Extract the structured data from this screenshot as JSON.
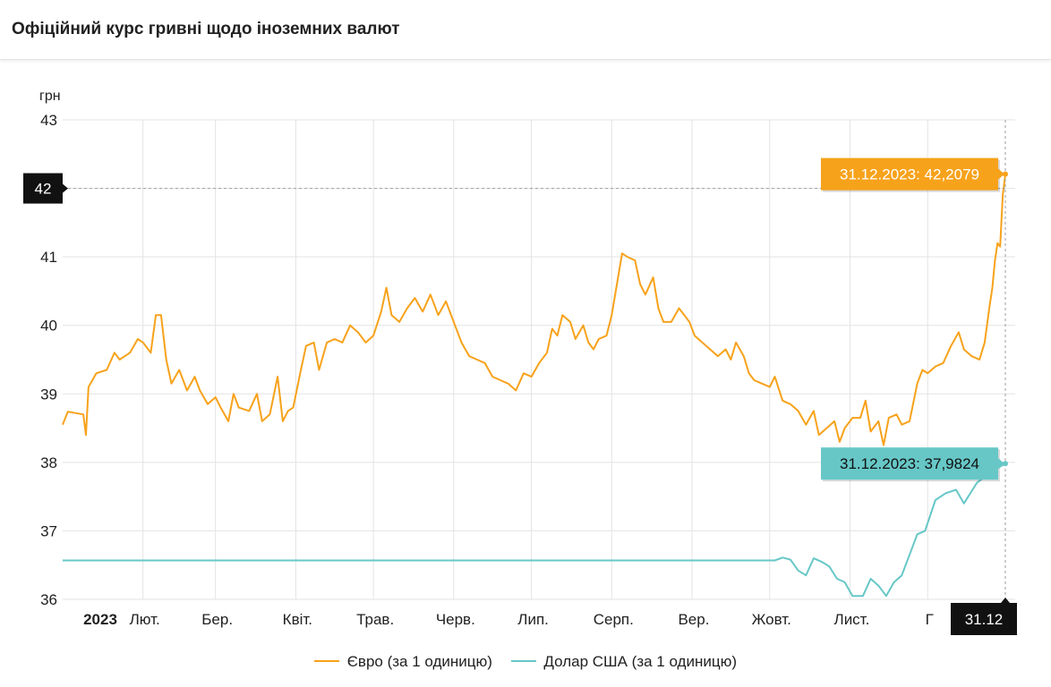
{
  "header": {
    "title": "Офіційний курс гривні щодо іноземних валют"
  },
  "colors": {
    "euro": "#f7a21b",
    "usd": "#67c7c7",
    "grid": "#e3e3e3",
    "crosshair_label": "#111111",
    "euro_label": "#f7a21b",
    "usd_label": "#67c7c7"
  },
  "chart_data": {
    "type": "line",
    "ylabel": "грн",
    "ylim": [
      36,
      43
    ],
    "yticks": [
      "43",
      "41",
      "40",
      "39",
      "38",
      "37",
      "36"
    ],
    "x_range": [
      "2023-01-01",
      "2023-12-31"
    ],
    "xticks": [
      "2023",
      "Лют.",
      "Бер.",
      "Квіт.",
      "Трав.",
      "Черв.",
      "Лип.",
      "Серп.",
      "Вер.",
      "Жовт.",
      "Лист.",
      "Г"
    ],
    "legend_position": "bottom",
    "grid": true,
    "series": [
      {
        "name": "Євро (за 1 одиницю)",
        "color": "#f7a21b",
        "points": [
          [
            "2023-01-01",
            38.55
          ],
          [
            "2023-01-03",
            38.74
          ],
          [
            "2023-01-09",
            38.7
          ],
          [
            "2023-01-10",
            38.4
          ],
          [
            "2023-01-11",
            39.1
          ],
          [
            "2023-01-14",
            39.3
          ],
          [
            "2023-01-18",
            39.35
          ],
          [
            "2023-01-21",
            39.6
          ],
          [
            "2023-01-23",
            39.5
          ],
          [
            "2023-01-27",
            39.6
          ],
          [
            "2023-01-30",
            39.8
          ],
          [
            "2023-02-01",
            39.75
          ],
          [
            "2023-02-04",
            39.6
          ],
          [
            "2023-02-06",
            40.15
          ],
          [
            "2023-02-08",
            40.15
          ],
          [
            "2023-02-10",
            39.5
          ],
          [
            "2023-02-12",
            39.15
          ],
          [
            "2023-02-15",
            39.35
          ],
          [
            "2023-02-18",
            39.05
          ],
          [
            "2023-02-21",
            39.25
          ],
          [
            "2023-02-23",
            39.05
          ],
          [
            "2023-02-26",
            38.85
          ],
          [
            "2023-03-01",
            38.95
          ],
          [
            "2023-03-03",
            38.8
          ],
          [
            "2023-03-06",
            38.6
          ],
          [
            "2023-03-08",
            39.0
          ],
          [
            "2023-03-10",
            38.8
          ],
          [
            "2023-03-14",
            38.75
          ],
          [
            "2023-03-17",
            39.0
          ],
          [
            "2023-03-19",
            38.6
          ],
          [
            "2023-03-22",
            38.7
          ],
          [
            "2023-03-25",
            39.25
          ],
          [
            "2023-03-27",
            38.6
          ],
          [
            "2023-03-29",
            38.75
          ],
          [
            "2023-03-31",
            38.8
          ],
          [
            "2023-04-03",
            39.35
          ],
          [
            "2023-04-05",
            39.7
          ],
          [
            "2023-04-08",
            39.75
          ],
          [
            "2023-04-10",
            39.35
          ],
          [
            "2023-04-13",
            39.75
          ],
          [
            "2023-04-16",
            39.8
          ],
          [
            "2023-04-19",
            39.75
          ],
          [
            "2023-04-22",
            40.0
          ],
          [
            "2023-04-25",
            39.9
          ],
          [
            "2023-04-28",
            39.75
          ],
          [
            "2023-05-01",
            39.85
          ],
          [
            "2023-05-04",
            40.2
          ],
          [
            "2023-05-06",
            40.55
          ],
          [
            "2023-05-08",
            40.15
          ],
          [
            "2023-05-11",
            40.05
          ],
          [
            "2023-05-14",
            40.25
          ],
          [
            "2023-05-17",
            40.4
          ],
          [
            "2023-05-20",
            40.2
          ],
          [
            "2023-05-23",
            40.45
          ],
          [
            "2023-05-26",
            40.15
          ],
          [
            "2023-05-29",
            40.35
          ],
          [
            "2023-06-01",
            40.05
          ],
          [
            "2023-06-04",
            39.75
          ],
          [
            "2023-06-07",
            39.55
          ],
          [
            "2023-06-10",
            39.5
          ],
          [
            "2023-06-13",
            39.45
          ],
          [
            "2023-06-16",
            39.25
          ],
          [
            "2023-06-19",
            39.2
          ],
          [
            "2023-06-22",
            39.15
          ],
          [
            "2023-06-25",
            39.05
          ],
          [
            "2023-06-28",
            39.3
          ],
          [
            "2023-07-01",
            39.25
          ],
          [
            "2023-07-04",
            39.45
          ],
          [
            "2023-07-07",
            39.6
          ],
          [
            "2023-07-09",
            39.95
          ],
          [
            "2023-07-11",
            39.85
          ],
          [
            "2023-07-13",
            40.15
          ],
          [
            "2023-07-16",
            40.05
          ],
          [
            "2023-07-18",
            39.8
          ],
          [
            "2023-07-21",
            40.0
          ],
          [
            "2023-07-23",
            39.75
          ],
          [
            "2023-07-25",
            39.65
          ],
          [
            "2023-07-27",
            39.8
          ],
          [
            "2023-07-30",
            39.85
          ],
          [
            "2023-08-01",
            40.15
          ],
          [
            "2023-08-03",
            40.6
          ],
          [
            "2023-08-05",
            41.05
          ],
          [
            "2023-08-07",
            41.0
          ],
          [
            "2023-08-10",
            40.95
          ],
          [
            "2023-08-12",
            40.6
          ],
          [
            "2023-08-14",
            40.45
          ],
          [
            "2023-08-17",
            40.7
          ],
          [
            "2023-08-19",
            40.25
          ],
          [
            "2023-08-21",
            40.05
          ],
          [
            "2023-08-24",
            40.05
          ],
          [
            "2023-08-27",
            40.25
          ],
          [
            "2023-08-29",
            40.15
          ],
          [
            "2023-08-31",
            40.05
          ],
          [
            "2023-09-02",
            39.85
          ],
          [
            "2023-09-05",
            39.75
          ],
          [
            "2023-09-08",
            39.65
          ],
          [
            "2023-09-11",
            39.55
          ],
          [
            "2023-09-14",
            39.65
          ],
          [
            "2023-09-16",
            39.5
          ],
          [
            "2023-09-18",
            39.75
          ],
          [
            "2023-09-21",
            39.55
          ],
          [
            "2023-09-23",
            39.3
          ],
          [
            "2023-09-25",
            39.2
          ],
          [
            "2023-09-28",
            39.15
          ],
          [
            "2023-10-01",
            39.1
          ],
          [
            "2023-10-03",
            39.25
          ],
          [
            "2023-10-06",
            38.9
          ],
          [
            "2023-10-09",
            38.85
          ],
          [
            "2023-10-12",
            38.75
          ],
          [
            "2023-10-15",
            38.55
          ],
          [
            "2023-10-18",
            38.75
          ],
          [
            "2023-10-20",
            38.4
          ],
          [
            "2023-10-23",
            38.5
          ],
          [
            "2023-10-26",
            38.6
          ],
          [
            "2023-10-28",
            38.3
          ],
          [
            "2023-10-30",
            38.5
          ],
          [
            "2023-11-02",
            38.65
          ],
          [
            "2023-11-05",
            38.65
          ],
          [
            "2023-11-07",
            38.9
          ],
          [
            "2023-11-09",
            38.45
          ],
          [
            "2023-11-12",
            38.6
          ],
          [
            "2023-11-14",
            38.25
          ],
          [
            "2023-11-16",
            38.65
          ],
          [
            "2023-11-19",
            38.7
          ],
          [
            "2023-11-21",
            38.55
          ],
          [
            "2023-11-24",
            38.6
          ],
          [
            "2023-11-27",
            39.15
          ],
          [
            "2023-11-29",
            39.35
          ],
          [
            "2023-12-01",
            39.3
          ],
          [
            "2023-12-04",
            39.4
          ],
          [
            "2023-12-07",
            39.45
          ],
          [
            "2023-12-10",
            39.7
          ],
          [
            "2023-12-13",
            39.9
          ],
          [
            "2023-12-15",
            39.65
          ],
          [
            "2023-12-18",
            39.55
          ],
          [
            "2023-12-21",
            39.5
          ],
          [
            "2023-12-23",
            39.75
          ],
          [
            "2023-12-25",
            40.3
          ],
          [
            "2023-12-26",
            40.55
          ],
          [
            "2023-12-27",
            40.95
          ],
          [
            "2023-12-28",
            41.2
          ],
          [
            "2023-12-29",
            41.15
          ],
          [
            "2023-12-30",
            41.9
          ],
          [
            "2023-12-31",
            42.2079
          ]
        ]
      },
      {
        "name": "Долар США (за 1 одиницю)",
        "color": "#67c7c7",
        "points": [
          [
            "2023-01-01",
            36.5686
          ],
          [
            "2023-10-03",
            36.5686
          ],
          [
            "2023-10-06",
            36.61
          ],
          [
            "2023-10-09",
            36.58
          ],
          [
            "2023-10-12",
            36.42
          ],
          [
            "2023-10-15",
            36.35
          ],
          [
            "2023-10-18",
            36.6
          ],
          [
            "2023-10-21",
            36.55
          ],
          [
            "2023-10-24",
            36.48
          ],
          [
            "2023-10-27",
            36.3
          ],
          [
            "2023-10-30",
            36.25
          ],
          [
            "2023-11-02",
            36.05
          ],
          [
            "2023-11-06",
            36.05
          ],
          [
            "2023-11-09",
            36.3
          ],
          [
            "2023-11-12",
            36.2
          ],
          [
            "2023-11-15",
            36.05
          ],
          [
            "2023-11-18",
            36.25
          ],
          [
            "2023-11-21",
            36.35
          ],
          [
            "2023-11-24",
            36.65
          ],
          [
            "2023-11-27",
            36.95
          ],
          [
            "2023-11-30",
            37.0
          ],
          [
            "2023-12-04",
            37.45
          ],
          [
            "2023-12-08",
            37.55
          ],
          [
            "2023-12-12",
            37.6
          ],
          [
            "2023-12-15",
            37.4
          ],
          [
            "2023-12-20",
            37.7
          ],
          [
            "2023-12-25",
            37.85
          ],
          [
            "2023-12-31",
            37.9824
          ]
        ]
      }
    ],
    "crosshair": {
      "y_label": "42",
      "x_label": "31.12"
    },
    "tooltips": [
      {
        "series": "euro",
        "text": "31.12.2023: 42,2079"
      },
      {
        "series": "usd",
        "text": "31.12.2023: 37,9824"
      }
    ]
  },
  "legend": {
    "euro_label": "Євро (за 1 одиницю)",
    "usd_label": "Долар США (за 1 одиницю)"
  }
}
